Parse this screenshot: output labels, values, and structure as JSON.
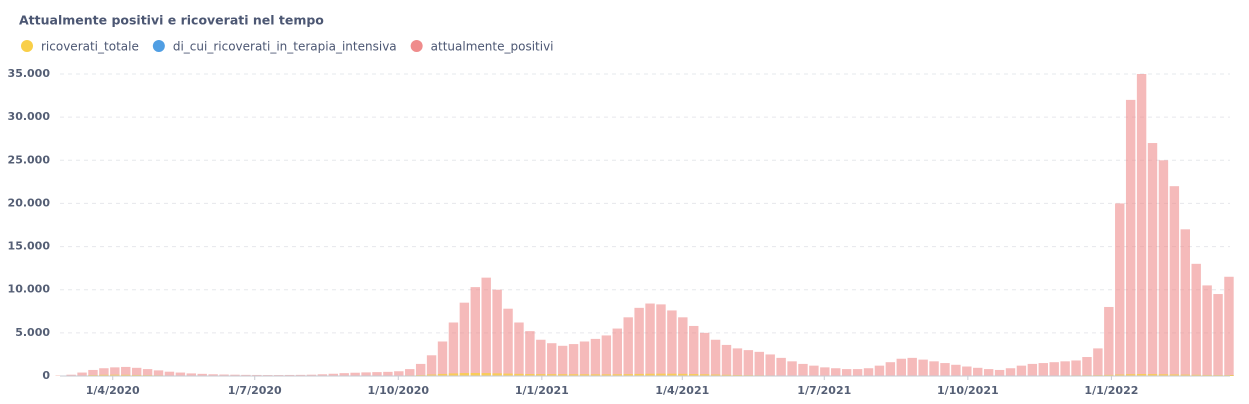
{
  "chart_data": {
    "type": "bar",
    "title": "Attualmente positivi e ricoverati nel tempo",
    "x": [
      "2020-02-24",
      "2020-03-02",
      "2020-03-09",
      "2020-03-16",
      "2020-03-23",
      "2020-03-30",
      "2020-04-06",
      "2020-04-13",
      "2020-04-20",
      "2020-04-27",
      "2020-05-04",
      "2020-05-11",
      "2020-05-18",
      "2020-05-25",
      "2020-06-01",
      "2020-06-08",
      "2020-06-15",
      "2020-06-22",
      "2020-06-29",
      "2020-07-06",
      "2020-07-13",
      "2020-07-20",
      "2020-07-27",
      "2020-08-03",
      "2020-08-10",
      "2020-08-17",
      "2020-08-24",
      "2020-08-31",
      "2020-09-07",
      "2020-09-14",
      "2020-09-21",
      "2020-09-28",
      "2020-10-05",
      "2020-10-12",
      "2020-10-19",
      "2020-10-26",
      "2020-11-02",
      "2020-11-09",
      "2020-11-16",
      "2020-11-23",
      "2020-11-30",
      "2020-12-07",
      "2020-12-14",
      "2020-12-21",
      "2020-12-28",
      "2021-01-04",
      "2021-01-11",
      "2021-01-18",
      "2021-01-25",
      "2021-02-01",
      "2021-02-08",
      "2021-02-15",
      "2021-02-22",
      "2021-03-01",
      "2021-03-08",
      "2021-03-15",
      "2021-03-22",
      "2021-03-29",
      "2021-04-05",
      "2021-04-12",
      "2021-04-19",
      "2021-04-26",
      "2021-05-03",
      "2021-05-10",
      "2021-05-17",
      "2021-05-24",
      "2021-05-31",
      "2021-06-07",
      "2021-06-14",
      "2021-06-21",
      "2021-06-28",
      "2021-07-05",
      "2021-07-12",
      "2021-07-19",
      "2021-07-26",
      "2021-08-02",
      "2021-08-09",
      "2021-08-16",
      "2021-08-23",
      "2021-08-30",
      "2021-09-06",
      "2021-09-13",
      "2021-09-20",
      "2021-09-27",
      "2021-10-04",
      "2021-10-11",
      "2021-10-18",
      "2021-10-25",
      "2021-11-01",
      "2021-11-08",
      "2021-11-15",
      "2021-11-22",
      "2021-11-29",
      "2021-12-06",
      "2021-12-13",
      "2021-12-20",
      "2021-12-27",
      "2022-01-03",
      "2022-01-10",
      "2022-01-17",
      "2022-01-24",
      "2022-01-31",
      "2022-02-07",
      "2022-02-14",
      "2022-02-21",
      "2022-02-28",
      "2022-03-07",
      "2022-03-14"
    ],
    "series": [
      {
        "name": "ricoverati_totale",
        "color": "#f9cf48",
        "values": [
          5,
          20,
          60,
          110,
          140,
          150,
          140,
          120,
          100,
          80,
          60,
          45,
          35,
          25,
          20,
          15,
          12,
          10,
          10,
          10,
          10,
          10,
          10,
          12,
          15,
          20,
          25,
          30,
          35,
          40,
          45,
          55,
          70,
          110,
          170,
          240,
          300,
          340,
          350,
          340,
          310,
          280,
          250,
          230,
          220,
          215,
          210,
          205,
          200,
          195,
          195,
          200,
          215,
          240,
          260,
          270,
          265,
          250,
          225,
          200,
          170,
          140,
          115,
          95,
          80,
          65,
          50,
          40,
          30,
          25,
          20,
          18,
          18,
          20,
          25,
          35,
          45,
          55,
          60,
          60,
          55,
          50,
          45,
          40,
          35,
          30,
          30,
          32,
          38,
          42,
          48,
          55,
          65,
          75,
          85,
          100,
          130,
          170,
          210,
          230,
          220,
          200,
          180,
          160,
          140,
          120,
          110,
          110
        ]
      },
      {
        "name": "di_cui_ricoverati_in_terapia_intensiva",
        "color": "#509ee3",
        "values": [
          1,
          3,
          8,
          14,
          18,
          19,
          17,
          14,
          11,
          9,
          7,
          5,
          4,
          3,
          2,
          2,
          1,
          1,
          1,
          1,
          1,
          1,
          1,
          1,
          2,
          2,
          3,
          3,
          4,
          4,
          5,
          6,
          8,
          12,
          18,
          25,
          32,
          36,
          37,
          36,
          33,
          30,
          27,
          25,
          24,
          23,
          22,
          22,
          21,
          21,
          21,
          22,
          24,
          27,
          30,
          31,
          30,
          28,
          25,
          22,
          18,
          15,
          12,
          10,
          8,
          7,
          5,
          4,
          3,
          3,
          2,
          2,
          2,
          2,
          3,
          4,
          5,
          6,
          7,
          7,
          6,
          6,
          5,
          5,
          4,
          4,
          4,
          4,
          5,
          5,
          6,
          7,
          8,
          9,
          10,
          12,
          15,
          18,
          20,
          21,
          20,
          18,
          16,
          14,
          12,
          11,
          10,
          10
        ]
      },
      {
        "name": "attualmente_positivi",
        "color": "#ef8c8c",
        "values": [
          50,
          150,
          400,
          700,
          900,
          1000,
          1050,
          950,
          800,
          650,
          500,
          400,
          300,
          250,
          200,
          170,
          150,
          130,
          120,
          110,
          110,
          120,
          130,
          150,
          200,
          260,
          330,
          380,
          420,
          450,
          480,
          550,
          800,
          1400,
          2400,
          4000,
          6200,
          8500,
          10300,
          11400,
          10000,
          7800,
          6200,
          5200,
          4200,
          3800,
          3500,
          3700,
          4000,
          4300,
          4700,
          5500,
          6800,
          7900,
          8400,
          8300,
          7600,
          6800,
          5800,
          5000,
          4200,
          3600,
          3200,
          3000,
          2800,
          2500,
          2100,
          1700,
          1400,
          1200,
          1000,
          900,
          800,
          800,
          900,
          1200,
          1600,
          2000,
          2100,
          1900,
          1700,
          1500,
          1300,
          1100,
          950,
          800,
          700,
          900,
          1200,
          1400,
          1500,
          1600,
          1700,
          1800,
          2200,
          3200,
          8000,
          20000,
          32000,
          35000,
          27000,
          25000,
          22000,
          17000,
          13000,
          10500,
          9500,
          11500
        ]
      }
    ],
    "xlim": [
      "2020-02-24",
      "2022-03-18"
    ],
    "xticks": [
      {
        "value": "2020-04-01",
        "label": "1/4/2020"
      },
      {
        "value": "2020-07-01",
        "label": "1/7/2020"
      },
      {
        "value": "2020-10-01",
        "label": "1/10/2020"
      },
      {
        "value": "2021-01-01",
        "label": "1/1/2021"
      },
      {
        "value": "2021-04-01",
        "label": "1/4/2021"
      },
      {
        "value": "2021-07-01",
        "label": "1/7/2021"
      },
      {
        "value": "2021-10-01",
        "label": "1/10/2021"
      },
      {
        "value": "2022-01-01",
        "label": "1/1/2022"
      }
    ],
    "ylim": [
      0,
      35000
    ],
    "yticks": [
      0,
      {
        "value": 5000,
        "label": "5.000"
      },
      {
        "value": 10000,
        "label": "10.000"
      },
      {
        "value": 15000,
        "label": "15.000"
      },
      {
        "value": 20000,
        "label": "20.000"
      },
      {
        "value": 25000,
        "label": "25.000"
      },
      {
        "value": 30000,
        "label": "30.000"
      },
      {
        "value": 35000,
        "label": "35.000"
      }
    ],
    "grid": true
  }
}
